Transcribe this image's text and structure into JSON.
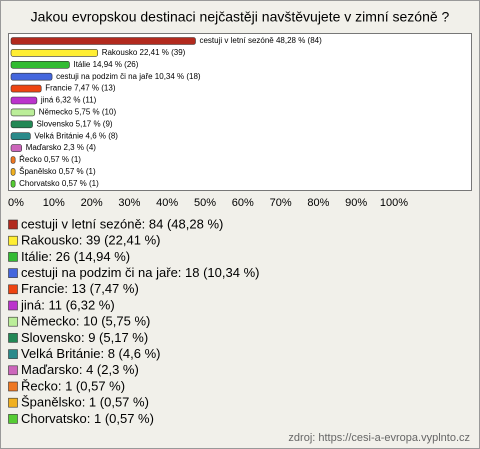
{
  "chart_data": {
    "type": "bar",
    "orientation": "horizontal",
    "title": "Jakou evropskou destinaci nejčastěji navštěvujete v zimní sezóně ?",
    "categories": [
      "cestuji v letní sezóně",
      "Rakousko",
      "Itálie",
      "cestuji na podzim či na jaře",
      "Francie",
      "jiná",
      "Německo",
      "Slovensko",
      "Velká Británie",
      "Maďarsko",
      "Řecko",
      "Španělsko",
      "Chorvatsko"
    ],
    "values": [
      48.28,
      22.41,
      14.94,
      10.34,
      7.47,
      6.32,
      5.75,
      5.17,
      4.6,
      2.3,
      0.57,
      0.57,
      0.57
    ],
    "value_labels": [
      "cestuji v letní sezóně 48,28 % (84)",
      "Rakousko 22,41 % (39)",
      "Itálie 14,94 % (26)",
      "cestuji na podzim či na jaře 10,34 % (18)",
      "Francie 7,47 % (13)",
      "jiná 6,32 % (11)",
      "Německo 5,75 % (10)",
      "Slovensko 5,17 % (9)",
      "Velká Británie 4,6 % (8)",
      "Maďarsko 2,3 % (4)",
      "Řecko 0,57 % (1)",
      "Španělsko 0,57 % (1)",
      "Chorvatsko 0,57 % (1)"
    ],
    "legend_labels": [
      "cestuji v letní sezóně: 84 (48,28 %)",
      "Rakousko: 39 (22,41 %)",
      "Itálie: 26 (14,94 %)",
      "cestuji na podzim či na jaře: 18 (10,34 %)",
      "Francie: 13 (7,47 %)",
      "jiná: 11 (6,32 %)",
      "Německo: 10 (5,75 %)",
      "Slovensko: 9 (5,17 %)",
      "Velká Británie: 8 (4,6 %)",
      "Maďarsko: 4 (2,3 %)",
      "Řecko: 1 (0,57 %)",
      "Španělsko: 1 (0,57 %)",
      "Chorvatsko: 1 (0,57 %)"
    ],
    "colors": [
      "#b22a1e",
      "#ffee33",
      "#33bb33",
      "#4466dd",
      "#ee4411",
      "#bb33cc",
      "#bbee99",
      "#228855",
      "#2a8a8a",
      "#cc66bb",
      "#ee7722",
      "#f0b020",
      "#55cc33"
    ],
    "xlim": [
      0,
      100
    ],
    "xticks": [
      {
        "value": 0,
        "label": "0%"
      },
      {
        "value": 10,
        "label": "10%"
      },
      {
        "value": 20,
        "label": "20%"
      },
      {
        "value": 30,
        "label": "30%"
      },
      {
        "value": 40,
        "label": "40%"
      },
      {
        "value": 50,
        "label": "50%"
      },
      {
        "value": 60,
        "label": "60%"
      },
      {
        "value": 70,
        "label": "70%"
      },
      {
        "value": 80,
        "label": "80%"
      },
      {
        "value": 90,
        "label": "90%"
      },
      {
        "value": 100,
        "label": "100%"
      }
    ],
    "source": "zdroj: https://cesi-a-evropa.vyplnto.cz"
  }
}
